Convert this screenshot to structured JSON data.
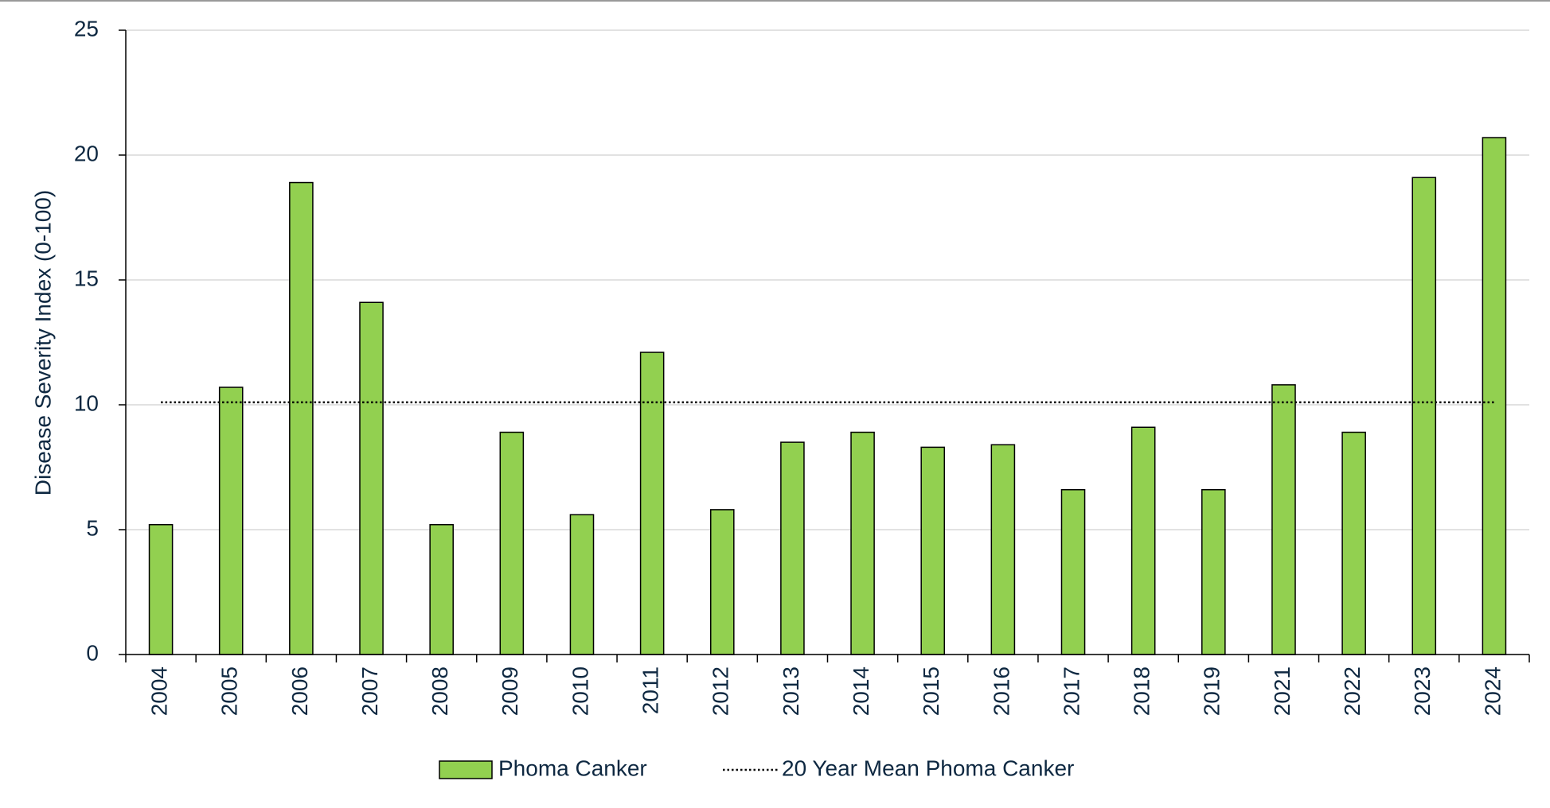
{
  "chart_data": {
    "type": "bar",
    "y_label": "Disease Severity Index (0-100)",
    "categories": [
      "2004",
      "2005",
      "2006",
      "2007",
      "2008",
      "2009",
      "2010",
      "2011",
      "2012",
      "2013",
      "2014",
      "2015",
      "2016",
      "2017",
      "2018",
      "2019",
      "2021",
      "2022",
      "2023",
      "2024"
    ],
    "series": [
      {
        "name": "Phoma Canker",
        "type": "bar",
        "color": "#92d050",
        "values": [
          5.2,
          10.7,
          18.9,
          14.1,
          5.2,
          8.9,
          5.6,
          12.1,
          5.8,
          8.5,
          8.9,
          8.3,
          8.4,
          6.6,
          9.1,
          6.6,
          10.8,
          8.9,
          19.1,
          20.7
        ]
      },
      {
        "name": "20 Year Mean Phoma Canker",
        "type": "line",
        "color": "#000000",
        "values": [
          10.1,
          10.1,
          10.1,
          10.1,
          10.1,
          10.1,
          10.1,
          10.1,
          10.1,
          10.1,
          10.1,
          10.1,
          10.1,
          10.1,
          10.1,
          10.1,
          10.1,
          10.1,
          10.1,
          10.1
        ]
      }
    ],
    "ylim": [
      0,
      25
    ],
    "yticks": [
      0,
      5,
      10,
      15,
      20,
      25
    ],
    "grid": true,
    "legend": "bottom"
  }
}
